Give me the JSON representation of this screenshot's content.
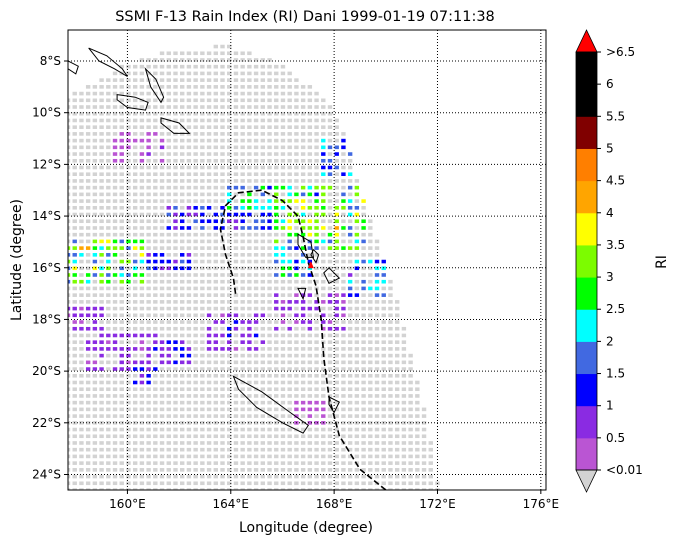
{
  "chart_data": {
    "type": "heatmap",
    "title": "SSMI F-13 Rain Index (RI) Dani 1999-01-19 07:11:38",
    "xlabel": "Longitude (degree)",
    "ylabel": "Latitude (degree)",
    "xlim": [
      157.7,
      176.2
    ],
    "ylim": [
      -24.6,
      -6.8
    ],
    "x_ticks": [
      {
        "value": 160,
        "label": "160°E"
      },
      {
        "value": 164,
        "label": "164°E"
      },
      {
        "value": 168,
        "label": "168°E"
      },
      {
        "value": 172,
        "label": "172°E"
      },
      {
        "value": 176,
        "label": "176°E"
      }
    ],
    "y_ticks": [
      {
        "value": -8,
        "label": "8°S"
      },
      {
        "value": -10,
        "label": "10°S"
      },
      {
        "value": -12,
        "label": "12°S"
      },
      {
        "value": -14,
        "label": "14°S"
      },
      {
        "value": -16,
        "label": "16°S"
      },
      {
        "value": -18,
        "label": "18°S"
      },
      {
        "value": -20,
        "label": "20°S"
      },
      {
        "value": -22,
        "label": "22°S"
      },
      {
        "value": -24,
        "label": "24°S"
      }
    ],
    "grid": true,
    "no_rain_color": "#d3d3d3",
    "swath": {
      "top_edge": [
        [
          157.7,
          -9.3
        ],
        [
          160,
          -8.1
        ],
        [
          162,
          -7.5
        ],
        [
          164,
          -7.4
        ],
        [
          166,
          -8.1
        ],
        [
          167.6,
          -9.4
        ],
        [
          168.3,
          -10.4
        ]
      ],
      "east_edge": [
        [
          168.3,
          -10.4
        ],
        [
          169.5,
          -14.5
        ],
        [
          170.5,
          -17.5
        ],
        [
          171.5,
          -21.5
        ],
        [
          172.1,
          -24.6
        ]
      ]
    },
    "colorbar": {
      "label": "RI",
      "levels": [
        0.01,
        0.5,
        1,
        1.5,
        2,
        2.5,
        3,
        3.5,
        4,
        4.5,
        5,
        5.5,
        6,
        6.5
      ],
      "tick_labels": [
        "<0.01",
        "0.5",
        "1",
        "1.5",
        "2",
        "2.5",
        "3",
        "3.5",
        "4",
        "4.5",
        "5",
        "5.5",
        "6",
        ">6.5"
      ],
      "colors": [
        "#ba55d3",
        "#8a2be2",
        "#0000ff",
        "#4169e1",
        "#00ffff",
        "#00ff00",
        "#7cfc00",
        "#ffff00",
        "#ffa500",
        "#ff7f00",
        "#800000",
        "#000000",
        "#000000"
      ],
      "under_color": "#d3d3d3",
      "over_color": "#ff0000"
    },
    "rain_regions": [
      {
        "lon": [
          157.7,
          160.8
        ],
        "lat": [
          -16.6,
          -14.8
        ],
        "ri": 2.8
      },
      {
        "lon": [
          157.7,
          159.0
        ],
        "lat": [
          -15.4,
          -15.0
        ],
        "ri": 3.2
      },
      {
        "lon": [
          160.2,
          162.8
        ],
        "lat": [
          -16.2,
          -15.4
        ],
        "ri": 1.2
      },
      {
        "lon": [
          161.4,
          165.6
        ],
        "lat": [
          -14.6,
          -13.6
        ],
        "ri": 1.3
      },
      {
        "lon": [
          165.6,
          169.2
        ],
        "lat": [
          -15.4,
          -12.8
        ],
        "ri": 2.7
      },
      {
        "lon": [
          166.2,
          168.6
        ],
        "lat": [
          -14.8,
          -13.2
        ],
        "ri": 3.1
      },
      {
        "lon": [
          167.4,
          169.8
        ],
        "lat": [
          -12.6,
          -11.0
        ],
        "ri": 1.6
      },
      {
        "lon": [
          163.8,
          166.2
        ],
        "lat": [
          -13.8,
          -12.8
        ],
        "ri": 2.2
      },
      {
        "lon": [
          168.4,
          170.0
        ],
        "lat": [
          -17.2,
          -15.6
        ],
        "ri": 1.7
      },
      {
        "lon": [
          165.6,
          167.2
        ],
        "lat": [
          -16.4,
          -15.4
        ],
        "ri": 2.1
      },
      {
        "lon": [
          158.4,
          161.2
        ],
        "lat": [
          -20.0,
          -18.4
        ],
        "ri": 0.7
      },
      {
        "lon": [
          161.0,
          162.4
        ],
        "lat": [
          -19.8,
          -18.8
        ],
        "ri": 1.1
      },
      {
        "lon": [
          163.0,
          165.4
        ],
        "lat": [
          -19.2,
          -17.8
        ],
        "ri": 0.8
      },
      {
        "lon": [
          160.2,
          161.2
        ],
        "lat": [
          -20.6,
          -19.8
        ],
        "ri": 1.1
      },
      {
        "lon": [
          165.6,
          168.6
        ],
        "lat": [
          -18.4,
          -16.8
        ],
        "ri": 0.6
      },
      {
        "lon": [
          157.7,
          159.2
        ],
        "lat": [
          -18.6,
          -17.4
        ],
        "ri": 0.6
      },
      {
        "lon": [
          159.4,
          161.4
        ],
        "lat": [
          -12.0,
          -10.8
        ],
        "ri": 0.4
      },
      {
        "lon": [
          166.4,
          167.8
        ],
        "lat": [
          -22.2,
          -21.0
        ],
        "ri": 0.3
      }
    ],
    "storm_track": [
      [
        170.0,
        -24.6
      ],
      [
        169.0,
        -23.8
      ],
      [
        168.2,
        -22.5
      ],
      [
        167.8,
        -21.0
      ],
      [
        167.6,
        -19.5
      ],
      [
        167.5,
        -18.0
      ],
      [
        167.3,
        -16.7
      ],
      [
        167.0,
        -15.8
      ],
      [
        166.8,
        -14.8
      ],
      [
        166.6,
        -14.0
      ],
      [
        166.0,
        -13.4
      ],
      [
        165.2,
        -13.0
      ],
      [
        164.3,
        -13.1
      ],
      [
        163.8,
        -13.6
      ],
      [
        163.6,
        -14.5
      ],
      [
        163.8,
        -15.5
      ],
      [
        164.1,
        -16.4
      ],
      [
        164.2,
        -17.1
      ]
    ],
    "storm_marker": [
      167.1,
      -15.9
    ],
    "coastlines": [
      [
        [
          158.5,
          -7.5
        ],
        [
          159.2,
          -7.8
        ],
        [
          159.8,
          -8.3
        ],
        [
          160.0,
          -8.6
        ],
        [
          159.5,
          -8.3
        ],
        [
          158.9,
          -8.0
        ],
        [
          158.5,
          -7.5
        ]
      ],
      [
        [
          157.7,
          -8.0
        ],
        [
          158.1,
          -8.2
        ],
        [
          158.0,
          -8.5
        ],
        [
          157.7,
          -8.3
        ]
      ],
      [
        [
          160.7,
          -8.3
        ],
        [
          161.1,
          -8.7
        ],
        [
          161.4,
          -9.4
        ],
        [
          161.3,
          -9.6
        ],
        [
          160.9,
          -9.0
        ],
        [
          160.7,
          -8.3
        ]
      ],
      [
        [
          159.6,
          -9.3
        ],
        [
          160.3,
          -9.4
        ],
        [
          160.8,
          -9.6
        ],
        [
          160.7,
          -9.9
        ],
        [
          160.0,
          -9.8
        ],
        [
          159.6,
          -9.5
        ],
        [
          159.6,
          -9.3
        ]
      ],
      [
        [
          161.3,
          -10.2
        ],
        [
          162.0,
          -10.4
        ],
        [
          162.4,
          -10.8
        ],
        [
          161.8,
          -10.8
        ],
        [
          161.3,
          -10.4
        ]
      ],
      [
        [
          166.6,
          -14.7
        ],
        [
          167.1,
          -15.0
        ],
        [
          167.2,
          -15.6
        ],
        [
          166.9,
          -15.6
        ],
        [
          166.6,
          -15.1
        ]
      ],
      [
        [
          167.2,
          -15.3
        ],
        [
          167.4,
          -15.5
        ],
        [
          167.3,
          -15.8
        ],
        [
          167.1,
          -15.5
        ]
      ],
      [
        [
          167.8,
          -16.0
        ],
        [
          168.2,
          -16.4
        ],
        [
          167.8,
          -16.6
        ],
        [
          167.6,
          -16.2
        ]
      ],
      [
        [
          164.1,
          -20.2
        ],
        [
          165.2,
          -20.8
        ],
        [
          166.3,
          -21.6
        ],
        [
          167.0,
          -22.1
        ],
        [
          166.8,
          -22.4
        ],
        [
          166.0,
          -22.0
        ],
        [
          165.0,
          -21.4
        ],
        [
          164.3,
          -20.7
        ],
        [
          164.1,
          -20.2
        ]
      ],
      [
        [
          167.8,
          -21.0
        ],
        [
          168.2,
          -21.2
        ],
        [
          168.0,
          -21.6
        ],
        [
          167.8,
          -21.3
        ]
      ],
      [
        [
          166.6,
          -16.8
        ],
        [
          166.9,
          -16.8
        ],
        [
          166.8,
          -17.2
        ]
      ]
    ]
  }
}
